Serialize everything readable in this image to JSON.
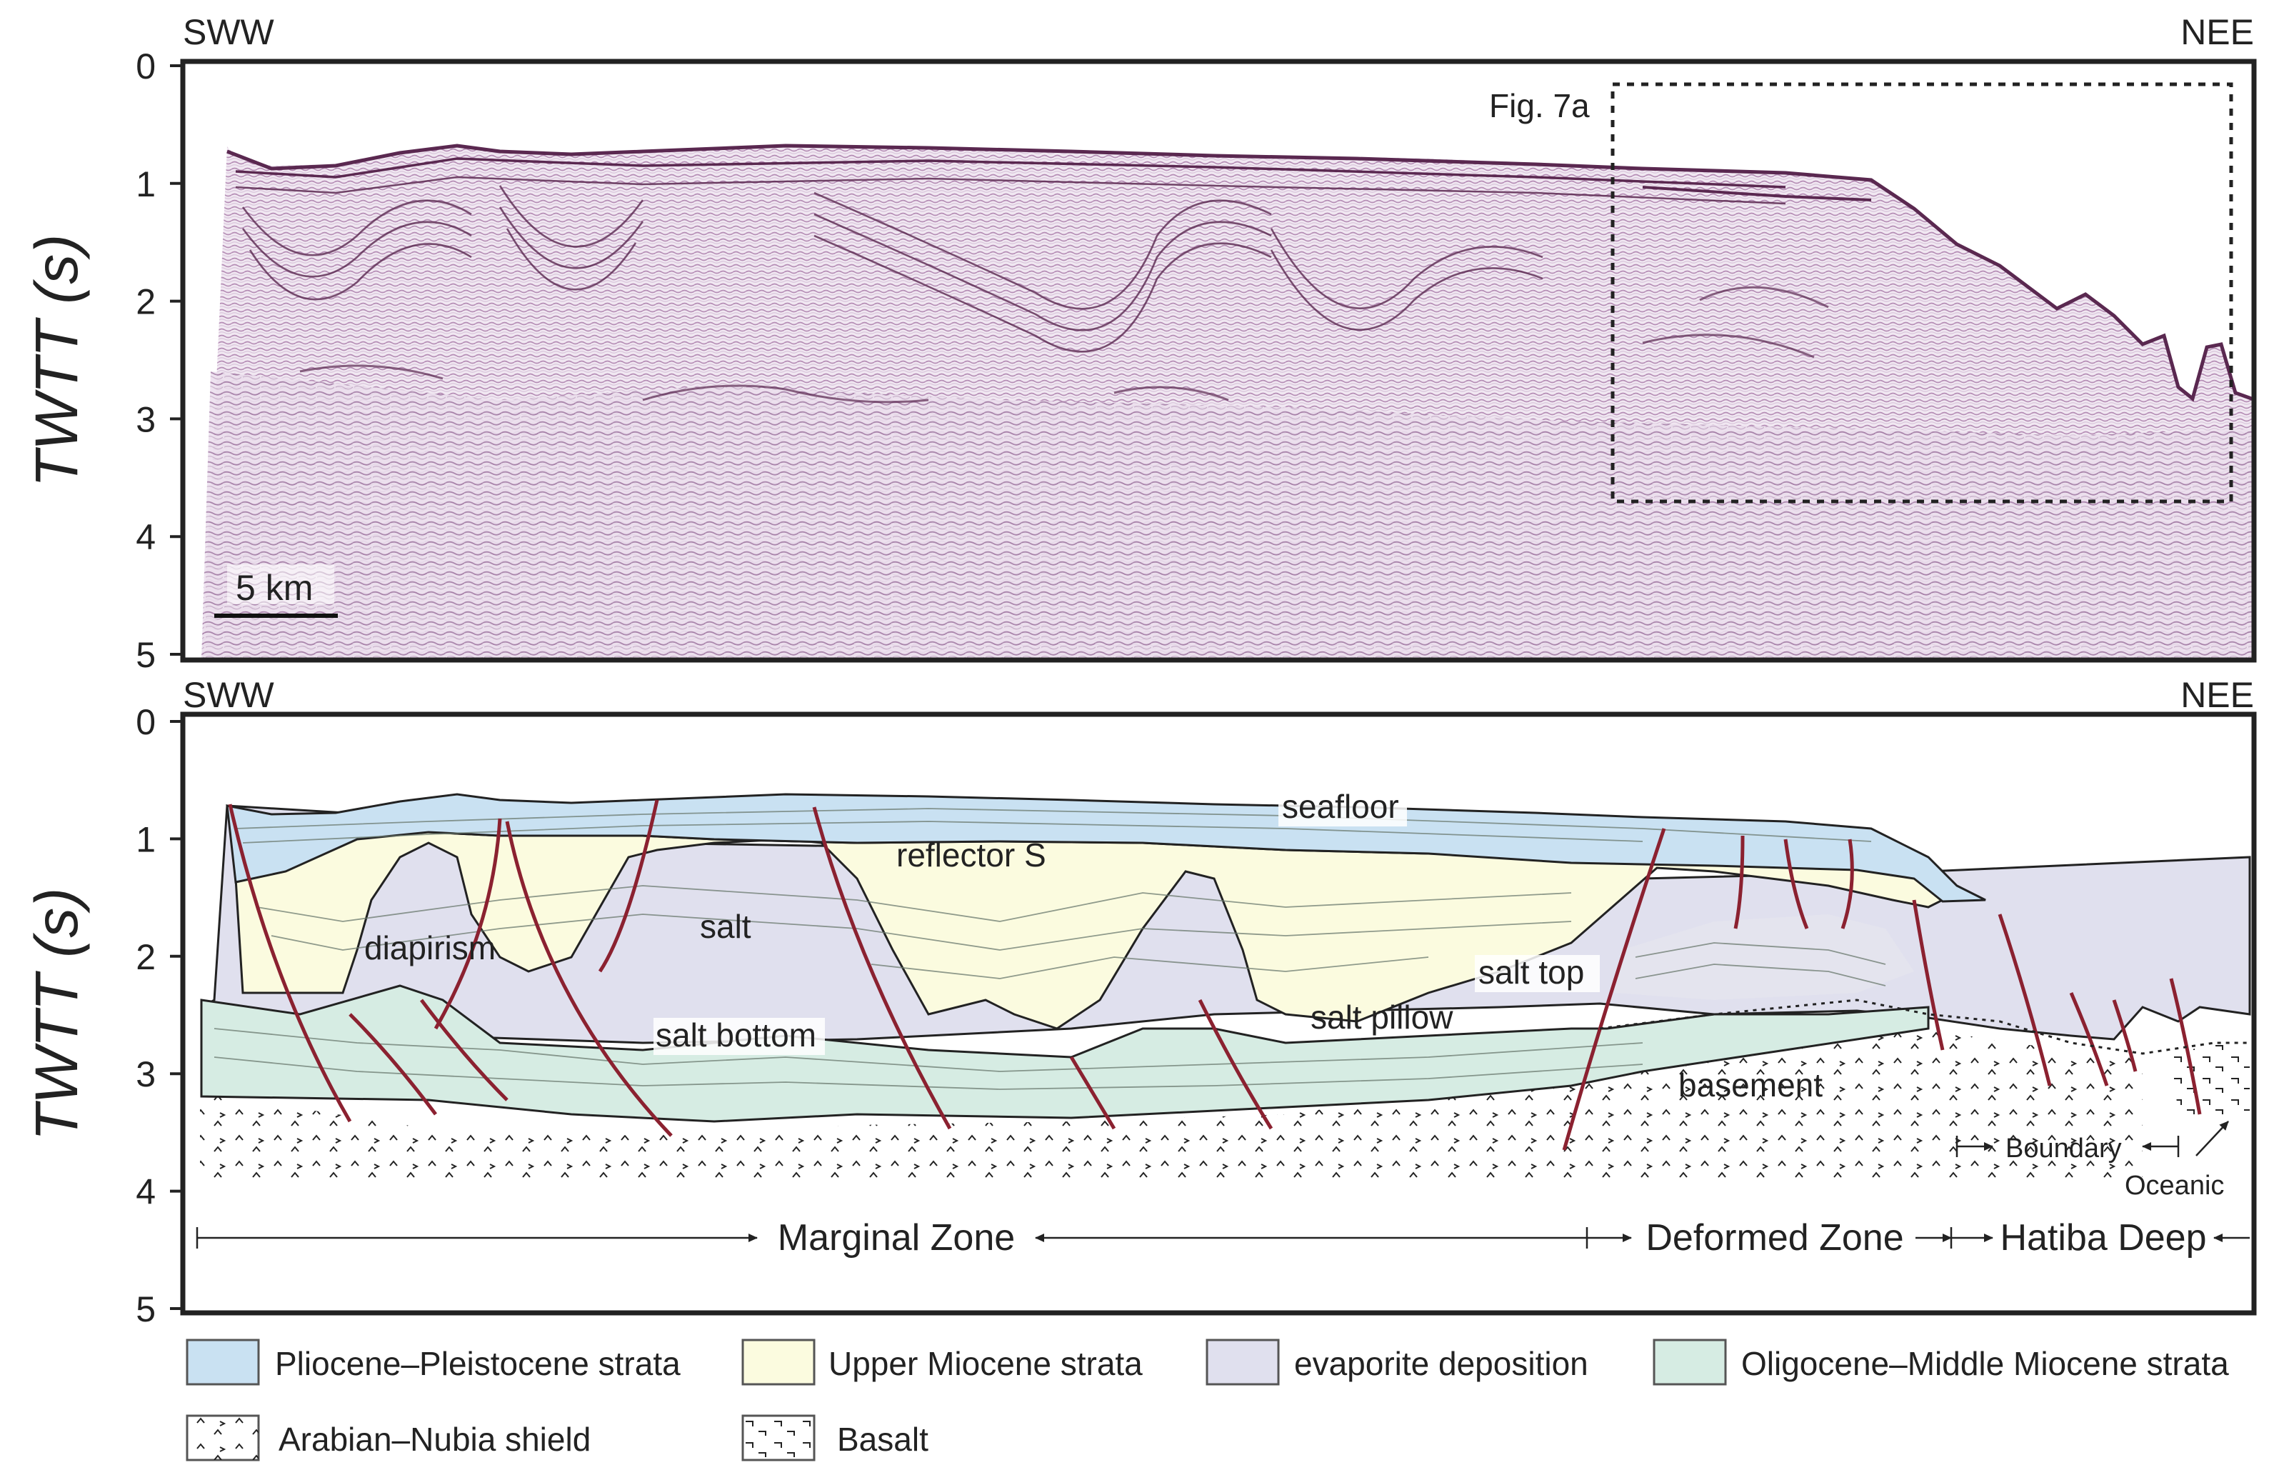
{
  "top_panel": {
    "direction_left": "SWW",
    "direction_right": "NEE",
    "y_axis_label": "TWTT (s)",
    "y_ticks": [
      "0",
      "1",
      "2",
      "3",
      "4",
      "5"
    ],
    "y_range_s": [
      0,
      5
    ],
    "scale_bar": "5 km",
    "inset_label": "Fig. 7a"
  },
  "bottom_panel": {
    "direction_left": "SWW",
    "direction_right": "NEE",
    "y_axis_label": "TWTT (s)",
    "y_ticks": [
      "0",
      "1",
      "2",
      "3",
      "4",
      "5"
    ],
    "y_range_s": [
      0,
      5
    ],
    "labels": {
      "seafloor": "seafloor",
      "reflector_s": "reflector S",
      "diapirism": "diapirism",
      "salt": "salt",
      "salt_top": "salt top",
      "salt_pillow": "salt pillow",
      "salt_bottom": "salt bottom",
      "basement": "basement",
      "boundary": "Boundary",
      "oceanic": "Oceanic"
    },
    "zones": [
      "Marginal Zone",
      "Deformed Zone",
      "Hatiba Deep"
    ]
  },
  "legend": [
    {
      "label": "Pliocene–Pleistocene strata",
      "color": "#c9e1f2"
    },
    {
      "label": "Upper Miocene strata",
      "color": "#fbfbdf"
    },
    {
      "label": "evaporite deposition",
      "color": "#e0e0ee"
    },
    {
      "label": "Oligocene–Middle Miocene strata",
      "color": "#d6ece3"
    },
    {
      "label": "Arabian–Nubia shield",
      "color": "#ffffff",
      "pattern": "chevrons"
    },
    {
      "label": "Basalt",
      "color": "#ffffff",
      "pattern": "ticks"
    }
  ],
  "colors": {
    "fault": "#8b2130",
    "seismic_dark": "#5a2850",
    "seismic_mid": "#b48cb4"
  }
}
